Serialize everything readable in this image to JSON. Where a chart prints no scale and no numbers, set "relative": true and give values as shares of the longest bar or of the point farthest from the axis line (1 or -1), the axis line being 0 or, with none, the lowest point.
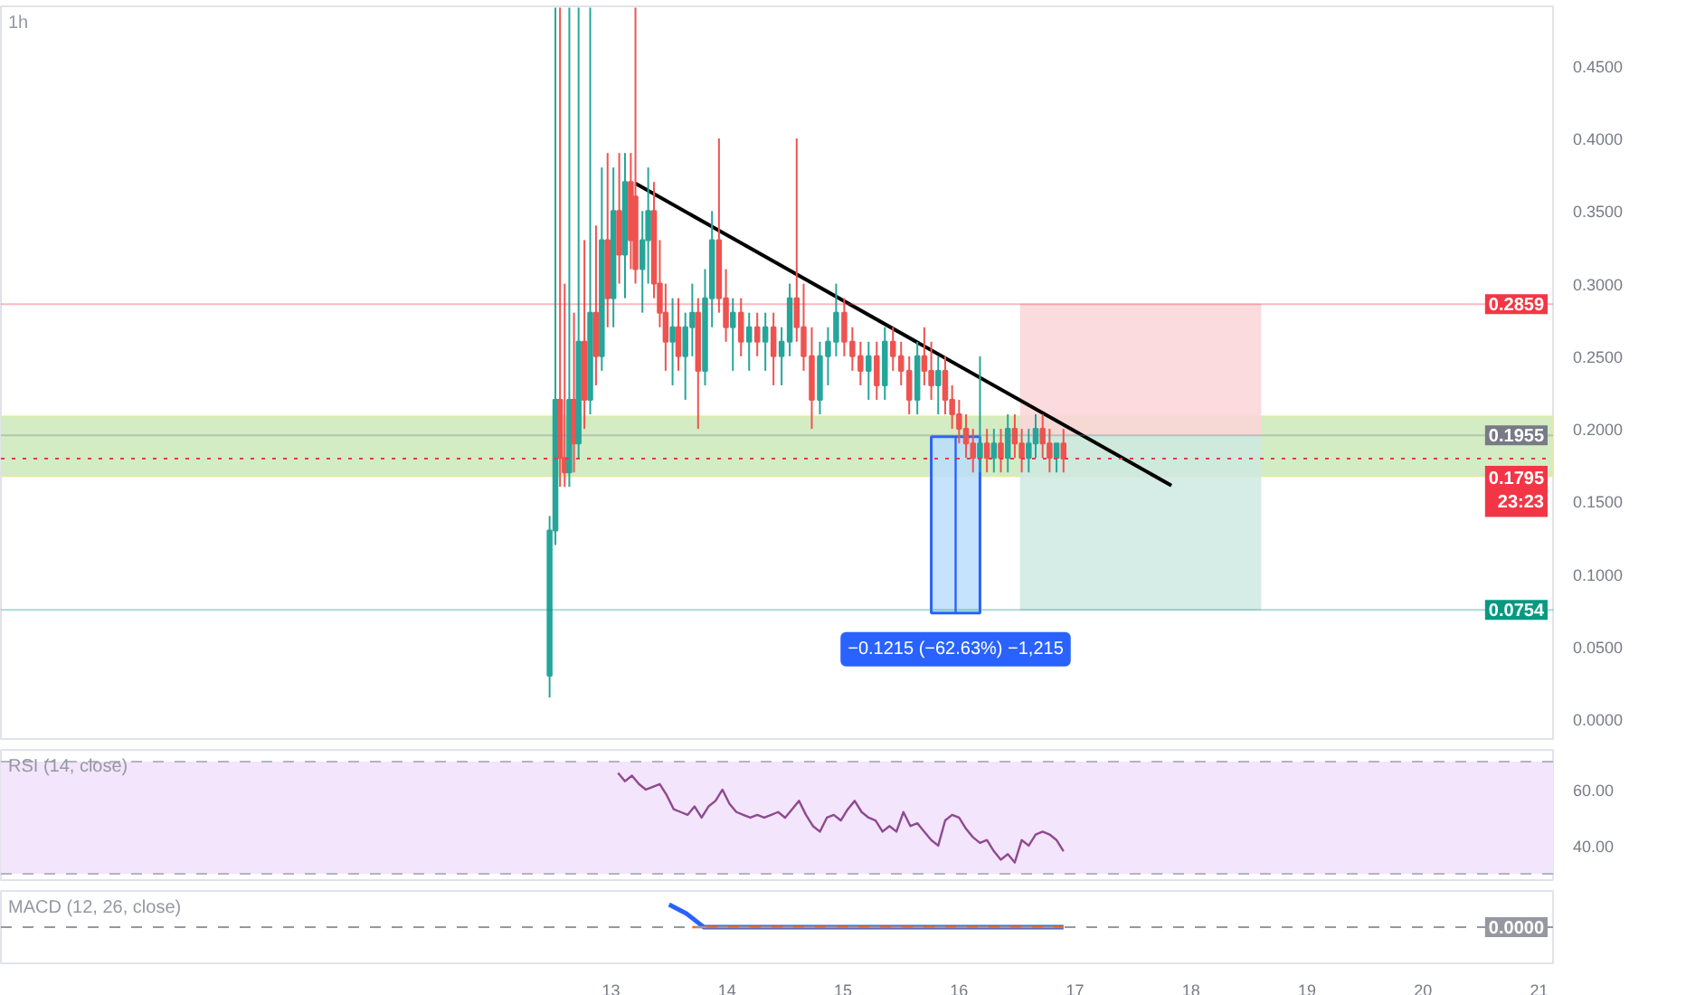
{
  "chart_data": [
    {
      "type": "candlestick",
      "title": "1h",
      "xlim": [
        7.74,
        21.12
      ],
      "ylim": [
        -0.0136,
        0.491
      ],
      "yticks": [
        {
          "value": 0,
          "label": "0.0000"
        },
        {
          "value": 0.05,
          "label": "0.0500"
        },
        {
          "value": 0.1,
          "label": "0.1000"
        },
        {
          "value": 0.15,
          "label": "0.1500"
        },
        {
          "value": 0.2,
          "label": "0.2000"
        },
        {
          "value": 0.25,
          "label": "0.2500"
        },
        {
          "value": 0.3,
          "label": "0.3000"
        },
        {
          "value": 0.35,
          "label": "0.3500"
        },
        {
          "value": 0.4,
          "label": "0.4000"
        },
        {
          "value": 0.45,
          "label": "0.4500"
        }
      ],
      "tick_labels": "y",
      "grid": false,
      "x": [
        12.47,
        12.52,
        12.56,
        12.6,
        12.64,
        12.68,
        12.72,
        12.77,
        12.82,
        12.87,
        12.92,
        12.97,
        13.02,
        13.07,
        13.12,
        13.17,
        13.21,
        13.27,
        13.32,
        13.37,
        13.42,
        13.47,
        13.53,
        13.58,
        13.64,
        13.7,
        13.75,
        13.81,
        13.87,
        13.93,
        13.99,
        14.05,
        14.12,
        14.19,
        14.26,
        14.33,
        14.4,
        14.47,
        14.54,
        14.6,
        14.66,
        14.73,
        14.8,
        14.87,
        14.94,
        15.01,
        15.08,
        15.15,
        15.22,
        15.29,
        15.36,
        15.43,
        15.5,
        15.57,
        15.64,
        15.7,
        15.76,
        15.82,
        15.88,
        15.94,
        16.0,
        16.06,
        16.12,
        16.18,
        16.24,
        16.3,
        16.36,
        16.42,
        16.48,
        16.54,
        16.6,
        16.66,
        16.72,
        16.78,
        16.84,
        16.9
      ],
      "ohlc": [
        [
          0.03,
          0.14,
          0.015,
          0.13
        ],
        [
          0.13,
          0.49,
          0.12,
          0.22
        ],
        [
          0.22,
          0.49,
          0.16,
          0.18
        ],
        [
          0.18,
          0.3,
          0.16,
          0.17
        ],
        [
          0.17,
          0.49,
          0.16,
          0.22
        ],
        [
          0.22,
          0.28,
          0.17,
          0.19
        ],
        [
          0.19,
          0.49,
          0.18,
          0.26
        ],
        [
          0.26,
          0.33,
          0.2,
          0.22
        ],
        [
          0.22,
          0.49,
          0.21,
          0.28
        ],
        [
          0.28,
          0.34,
          0.23,
          0.25
        ],
        [
          0.25,
          0.38,
          0.24,
          0.33
        ],
        [
          0.33,
          0.39,
          0.27,
          0.29
        ],
        [
          0.29,
          0.38,
          0.27,
          0.35
        ],
        [
          0.35,
          0.39,
          0.3,
          0.32
        ],
        [
          0.32,
          0.39,
          0.29,
          0.37
        ],
        [
          0.37,
          0.39,
          0.31,
          0.33
        ],
        [
          0.36,
          0.49,
          0.3,
          0.31
        ],
        [
          0.31,
          0.35,
          0.28,
          0.33
        ],
        [
          0.33,
          0.38,
          0.3,
          0.35
        ],
        [
          0.35,
          0.37,
          0.29,
          0.3
        ],
        [
          0.3,
          0.33,
          0.27,
          0.28
        ],
        [
          0.28,
          0.3,
          0.24,
          0.26
        ],
        [
          0.26,
          0.29,
          0.23,
          0.27
        ],
        [
          0.27,
          0.29,
          0.24,
          0.25
        ],
        [
          0.25,
          0.28,
          0.22,
          0.27
        ],
        [
          0.27,
          0.3,
          0.25,
          0.28
        ],
        [
          0.28,
          0.29,
          0.2,
          0.24
        ],
        [
          0.24,
          0.31,
          0.23,
          0.29
        ],
        [
          0.29,
          0.35,
          0.27,
          0.33
        ],
        [
          0.33,
          0.4,
          0.28,
          0.29
        ],
        [
          0.29,
          0.31,
          0.26,
          0.27
        ],
        [
          0.27,
          0.29,
          0.24,
          0.28
        ],
        [
          0.28,
          0.29,
          0.25,
          0.26
        ],
        [
          0.26,
          0.28,
          0.24,
          0.27
        ],
        [
          0.27,
          0.28,
          0.25,
          0.26
        ],
        [
          0.26,
          0.28,
          0.24,
          0.27
        ],
        [
          0.27,
          0.28,
          0.23,
          0.25
        ],
        [
          0.25,
          0.27,
          0.23,
          0.26
        ],
        [
          0.26,
          0.3,
          0.25,
          0.29
        ],
        [
          0.29,
          0.4,
          0.26,
          0.27
        ],
        [
          0.27,
          0.3,
          0.24,
          0.25
        ],
        [
          0.25,
          0.27,
          0.2,
          0.22
        ],
        [
          0.22,
          0.26,
          0.21,
          0.25
        ],
        [
          0.25,
          0.27,
          0.23,
          0.26
        ],
        [
          0.26,
          0.3,
          0.25,
          0.28
        ],
        [
          0.28,
          0.29,
          0.25,
          0.26
        ],
        [
          0.26,
          0.27,
          0.24,
          0.25
        ],
        [
          0.25,
          0.26,
          0.23,
          0.24
        ],
        [
          0.24,
          0.26,
          0.22,
          0.25
        ],
        [
          0.25,
          0.26,
          0.22,
          0.23
        ],
        [
          0.23,
          0.27,
          0.22,
          0.26
        ],
        [
          0.26,
          0.27,
          0.24,
          0.25
        ],
        [
          0.25,
          0.26,
          0.23,
          0.24
        ],
        [
          0.24,
          0.25,
          0.21,
          0.22
        ],
        [
          0.22,
          0.26,
          0.21,
          0.25
        ],
        [
          0.25,
          0.27,
          0.23,
          0.24
        ],
        [
          0.24,
          0.26,
          0.22,
          0.23
        ],
        [
          0.23,
          0.25,
          0.21,
          0.24
        ],
        [
          0.24,
          0.25,
          0.21,
          0.22
        ],
        [
          0.22,
          0.23,
          0.2,
          0.21
        ],
        [
          0.21,
          0.22,
          0.19,
          0.2
        ],
        [
          0.2,
          0.21,
          0.18,
          0.19
        ],
        [
          0.19,
          0.2,
          0.17,
          0.18
        ],
        [
          0.18,
          0.25,
          0.17,
          0.19
        ],
        [
          0.19,
          0.2,
          0.17,
          0.18
        ],
        [
          0.18,
          0.2,
          0.17,
          0.19
        ],
        [
          0.19,
          0.2,
          0.17,
          0.18
        ],
        [
          0.18,
          0.21,
          0.17,
          0.2
        ],
        [
          0.2,
          0.21,
          0.18,
          0.19
        ],
        [
          0.19,
          0.2,
          0.17,
          0.18
        ],
        [
          0.18,
          0.2,
          0.17,
          0.19
        ],
        [
          0.19,
          0.21,
          0.18,
          0.2
        ],
        [
          0.2,
          0.21,
          0.18,
          0.19
        ],
        [
          0.19,
          0.2,
          0.17,
          0.18
        ],
        [
          0.18,
          0.19,
          0.17,
          0.19
        ],
        [
          0.19,
          0.2,
          0.17,
          0.1795
        ]
      ],
      "series": [
        {
          "type": "bar",
          "color": "#fbd5d8",
          "x": [
            17.565
          ],
          "base": [
            0.1955
          ],
          "values": [
            0.0904
          ]
        },
        {
          "type": "bar",
          "color": "#cfe9e2",
          "x": [
            17.565
          ],
          "base": [
            0.0754
          ],
          "values": [
            0.1201
          ]
        },
        {
          "type": "bar",
          "color": "#bbdefb",
          "x": [
            15.97
          ],
          "base": [
            0.0731
          ],
          "values": [
            0.1215
          ]
        },
        {
          "type": "line",
          "color": "#2962ff",
          "x": [
            15.97,
            15.97
          ],
          "values": [
            0.1946,
            0.0731
          ]
        },
        {
          "type": "line",
          "color": "#000000",
          "x": [
            13.21,
            17.83
          ],
          "values": [
            0.369,
            0.161
          ]
        }
      ],
      "bands": [
        {
          "axis": "y",
          "from": 0.167,
          "to": 0.209,
          "color": "#d4ecc4"
        }
      ],
      "ref_lines": [
        {
          "axis": "y",
          "value": 0.2859,
          "label": "0.2859",
          "color": "#f23645",
          "line_style": "solid"
        },
        {
          "axis": "y",
          "value": 0.1955,
          "label": "0.1955",
          "color": "#787b86",
          "line_style": "solid"
        },
        {
          "axis": "y",
          "value": 0.1795,
          "label": "0.1795\n23:23",
          "color": "#f23645",
          "line_style": "dotted"
        },
        {
          "axis": "y",
          "value": 0.0754,
          "label": "0.0754",
          "color": "#089981",
          "line_style": "solid"
        }
      ],
      "annotations": [
        "−0.1215 (−62.63%) −1,215"
      ]
    },
    {
      "type": "line",
      "title": "RSI (14, close)",
      "xlim": [
        7.74,
        21.12
      ],
      "ylim": [
        27.7,
        74.2
      ],
      "yticks": [
        {
          "value": 40,
          "label": "40.00"
        },
        {
          "value": 60,
          "label": "60.00"
        }
      ],
      "tick_labels": "y",
      "grid": false,
      "series": [
        {
          "color": "#8e4a8f",
          "x": [
            13.06,
            13.12,
            13.18,
            13.24,
            13.3,
            13.36,
            13.42,
            13.48,
            13.54,
            13.6,
            13.66,
            13.72,
            13.78,
            13.84,
            13.9,
            13.96,
            14.02,
            14.08,
            14.14,
            14.2,
            14.26,
            14.32,
            14.38,
            14.44,
            14.5,
            14.56,
            14.62,
            14.68,
            14.74,
            14.8,
            14.86,
            14.92,
            14.98,
            15.04,
            15.1,
            15.16,
            15.22,
            15.28,
            15.34,
            15.4,
            15.46,
            15.52,
            15.58,
            15.64,
            15.7,
            15.76,
            15.82,
            15.88,
            15.94,
            16.0,
            16.06,
            16.12,
            16.18,
            16.24,
            16.3,
            16.36,
            16.42,
            16.48,
            16.54,
            16.6,
            16.66,
            16.72,
            16.78,
            16.84,
            16.9
          ],
          "values": [
            66,
            63,
            65,
            62,
            60,
            61,
            62,
            58,
            53,
            52,
            51,
            54,
            50,
            54,
            56,
            60,
            55,
            52,
            51,
            50,
            51,
            50,
            51,
            52,
            50,
            53,
            56,
            51,
            47,
            45,
            50,
            51,
            49,
            53,
            56,
            52,
            50,
            49,
            45,
            47,
            45,
            52,
            47,
            48,
            45,
            42,
            40,
            49,
            51,
            50,
            46,
            43,
            41,
            42,
            38,
            35,
            37,
            34,
            42,
            40,
            44,
            45,
            44,
            42,
            38
          ]
        }
      ],
      "bands": [
        {
          "axis": "y",
          "from": 30,
          "to": 70,
          "color": "#f3e5fc"
        }
      ],
      "ref_lines": [
        {
          "axis": "y",
          "value": 70,
          "color": "#b2b5be",
          "line_style": "dashed"
        },
        {
          "axis": "y",
          "value": 30,
          "color": "#b2b5be",
          "line_style": "dashed"
        }
      ]
    },
    {
      "type": "line",
      "title": "MACD (12, 26, close)",
      "relative": true,
      "xlim": [
        7.74,
        21.12
      ],
      "xticks": [
        13,
        14,
        15,
        16,
        17,
        18,
        19,
        20,
        21
      ],
      "tick_labels": "x",
      "grid": false,
      "series": [
        {
          "color": "#2962ff",
          "x": [
            13.5,
            13.65,
            13.8,
            16.9
          ],
          "values": [
            1,
            0.6,
            0,
            0
          ]
        },
        {
          "color": "#ff6d00",
          "x": [
            13.7,
            16.9
          ],
          "values": [
            0,
            0
          ]
        }
      ],
      "ref_lines": [
        {
          "axis": "y",
          "value": 0,
          "label": "0.0000",
          "color": "#9598a1",
          "line_style": "dashed"
        }
      ]
    }
  ]
}
